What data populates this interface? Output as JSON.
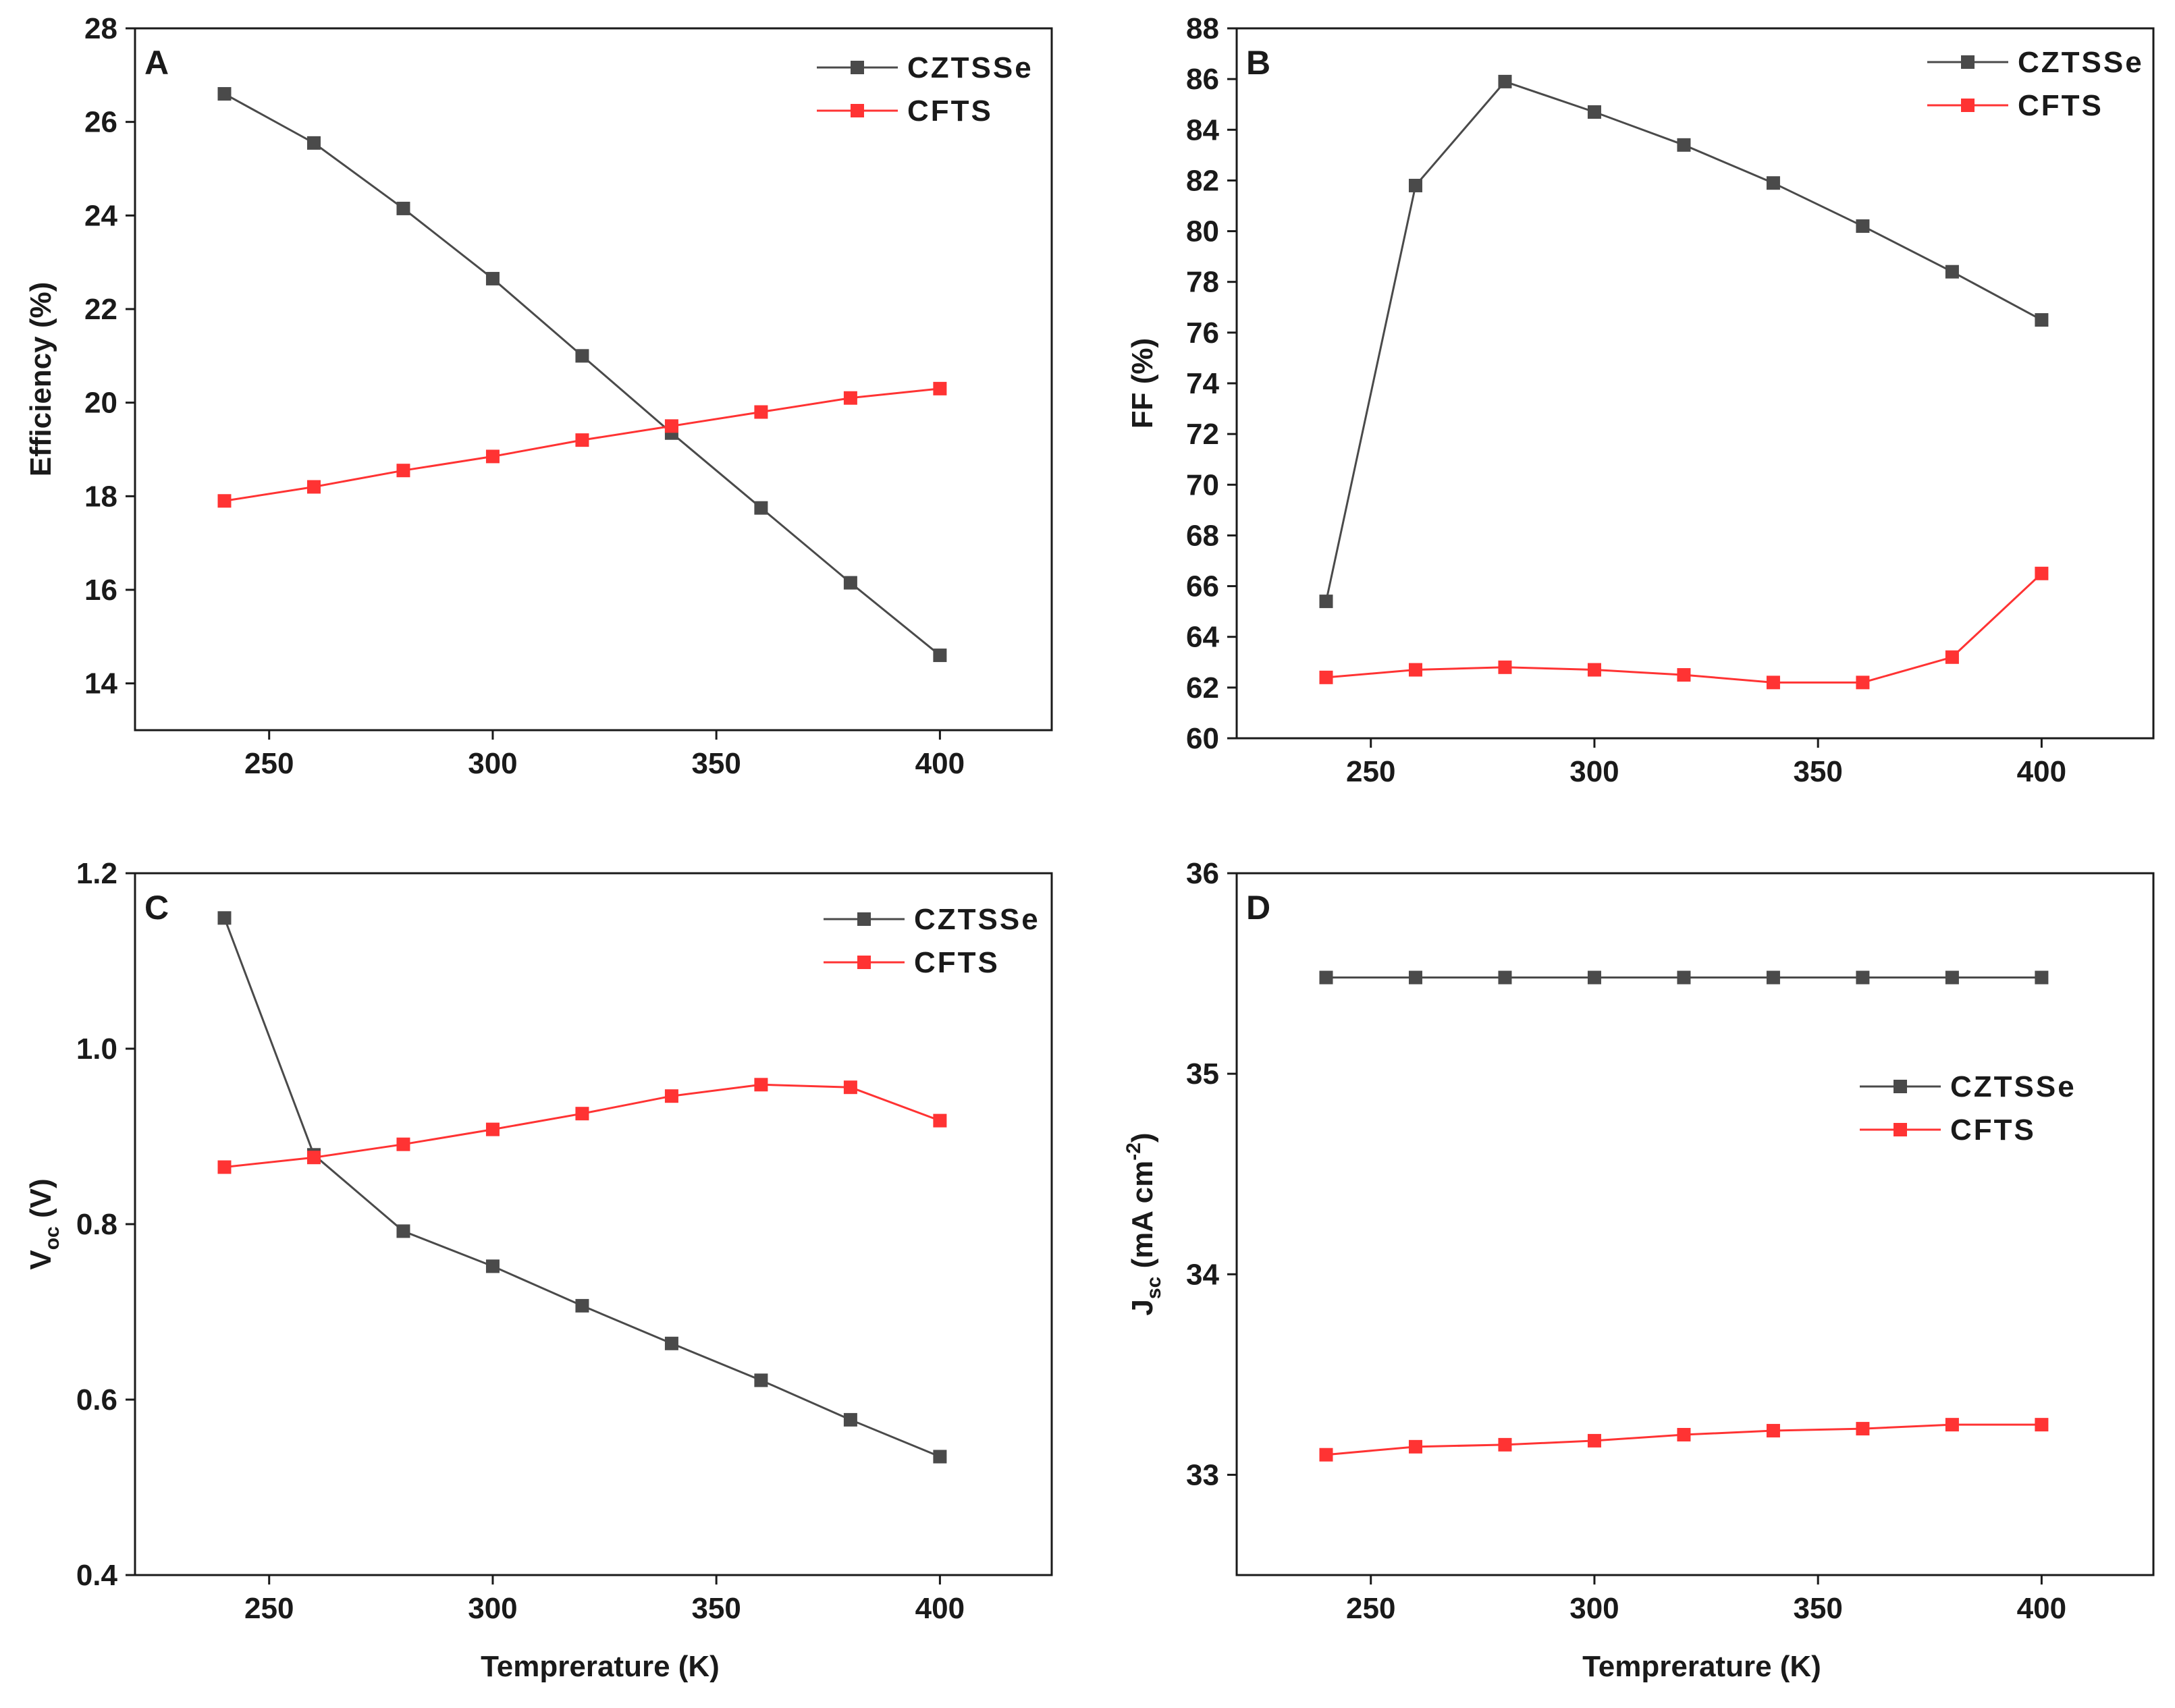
{
  "chart_data": [
    {
      "type": "line",
      "panel": "A",
      "title": "",
      "xlabel": "",
      "ylabel": "Efficiency (%)",
      "xlim": [
        220,
        425
      ],
      "ylim": [
        13,
        28
      ],
      "xticks": [
        250,
        300,
        350,
        400
      ],
      "yticks": [
        14,
        16,
        18,
        20,
        22,
        24,
        26,
        28
      ],
      "legend_position": "top-right",
      "x": [
        240,
        260,
        280,
        300,
        320,
        340,
        360,
        380,
        400
      ],
      "series": [
        {
          "name": "CZTSSe",
          "color": "#4a4a4a",
          "values": [
            26.6,
            25.55,
            24.15,
            22.65,
            21.0,
            19.35,
            17.75,
            16.15,
            14.6
          ]
        },
        {
          "name": "CFTS",
          "color": "#ff3333",
          "values": [
            17.9,
            18.2,
            18.55,
            18.85,
            19.2,
            19.5,
            19.8,
            20.1,
            20.3
          ]
        }
      ]
    },
    {
      "type": "line",
      "panel": "B",
      "title": "",
      "xlabel": "",
      "ylabel": "FF (%)",
      "xlim": [
        220,
        425
      ],
      "ylim": [
        60,
        88
      ],
      "xticks": [
        250,
        300,
        350,
        400
      ],
      "yticks": [
        60,
        62,
        64,
        66,
        68,
        70,
        72,
        74,
        76,
        78,
        80,
        82,
        84,
        86,
        88
      ],
      "legend_position": "top-right",
      "x": [
        240,
        260,
        280,
        300,
        320,
        340,
        360,
        380,
        400
      ],
      "series": [
        {
          "name": "CZTSSe",
          "color": "#4a4a4a",
          "values": [
            65.4,
            81.8,
            85.9,
            84.7,
            83.4,
            81.9,
            80.2,
            78.4,
            76.5
          ]
        },
        {
          "name": "CFTS",
          "color": "#ff3333",
          "values": [
            62.4,
            62.7,
            62.8,
            62.7,
            62.5,
            62.2,
            62.2,
            63.2,
            66.5
          ]
        }
      ]
    },
    {
      "type": "line",
      "panel": "C",
      "title": "",
      "xlabel": "Temprerature (K)",
      "ylabel": "V",
      "ylabel_sub": "oc",
      "ylabel_rest": " (V)",
      "xlim": [
        220,
        425
      ],
      "ylim": [
        0.4,
        1.2
      ],
      "xticks": [
        250,
        300,
        350,
        400
      ],
      "yticks": [
        0.4,
        0.6,
        0.8,
        1.0,
        1.2
      ],
      "ytick_labels": [
        "0.4",
        "0.6",
        "0.8",
        "1.0",
        "1.2"
      ],
      "legend_position": "top-right",
      "x": [
        240,
        260,
        280,
        300,
        320,
        340,
        360,
        380,
        400
      ],
      "series": [
        {
          "name": "CZTSSe",
          "color": "#4a4a4a",
          "values": [
            1.149,
            0.879,
            0.792,
            0.752,
            0.707,
            0.664,
            0.622,
            0.577,
            0.535
          ]
        },
        {
          "name": "CFTS",
          "color": "#ff3333",
          "values": [
            0.865,
            0.876,
            0.891,
            0.908,
            0.926,
            0.946,
            0.959,
            0.956,
            0.918
          ]
        }
      ]
    },
    {
      "type": "line",
      "panel": "D",
      "title": "",
      "xlabel": "Temprerature (K)",
      "ylabel": "J",
      "ylabel_sub": "sc",
      "ylabel_rest": " (mA cm",
      "ylabel_sup": "-2",
      "ylabel_end": ")",
      "xlim": [
        220,
        425
      ],
      "ylim": [
        32.5,
        36
      ],
      "xticks": [
        250,
        300,
        350,
        400
      ],
      "yticks": [
        33,
        34,
        35,
        36
      ],
      "legend_position": "center-right",
      "x": [
        240,
        260,
        280,
        300,
        320,
        340,
        360,
        380,
        400
      ],
      "series": [
        {
          "name": "CZTSSe",
          "color": "#4a4a4a",
          "values": [
            35.48,
            35.48,
            35.48,
            35.48,
            35.48,
            35.48,
            35.48,
            35.48,
            35.48
          ]
        },
        {
          "name": "CFTS",
          "color": "#ff3333",
          "values": [
            33.1,
            33.14,
            33.15,
            33.17,
            33.2,
            33.22,
            33.23,
            33.25,
            33.25
          ]
        }
      ]
    }
  ]
}
